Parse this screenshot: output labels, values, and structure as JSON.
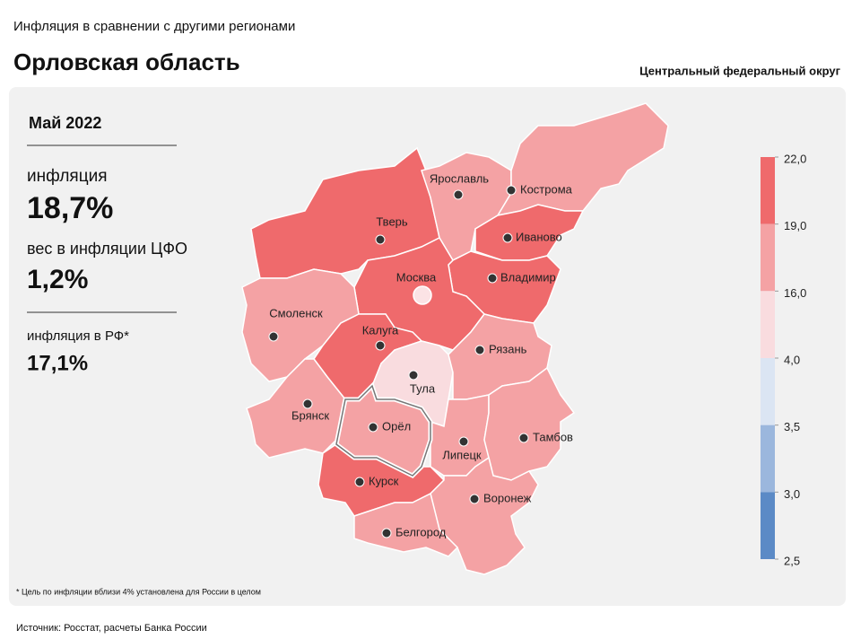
{
  "header": {
    "subtitle": "Инфляция в сравнении с другими регионами",
    "title": "Орловская область",
    "district": "Центральный федеральный округ"
  },
  "sidebar": {
    "period": "Май 2022",
    "inflation_label": "инфляция",
    "inflation": "18,7%",
    "weight_label": "вес в инфляции ЦФО",
    "weight": "1,2%",
    "rf_label": "инфляция в РФ*",
    "rf": "17,1%"
  },
  "map": {
    "regions": [
      {
        "name": "Тверь",
        "color": "#ef6a6c"
      },
      {
        "name": "Ярославль",
        "color": "#f4a2a4"
      },
      {
        "name": "Кострома",
        "color": "#f4a2a4"
      },
      {
        "name": "Иваново",
        "color": "#ef6a6c"
      },
      {
        "name": "Владимир",
        "color": "#ef6a6c"
      },
      {
        "name": "Москва",
        "color": "#ef6a6c"
      },
      {
        "name": "Смоленск",
        "color": "#f4a2a4"
      },
      {
        "name": "Калуга",
        "color": "#ef6a6c"
      },
      {
        "name": "Тула",
        "color": "#f9dcdf"
      },
      {
        "name": "Рязань",
        "color": "#f4a2a4"
      },
      {
        "name": "Брянск",
        "color": "#f4a2a4"
      },
      {
        "name": "Орёл",
        "color": "#f4a2a4",
        "selected": true
      },
      {
        "name": "Липецк",
        "color": "#f4a2a4"
      },
      {
        "name": "Тамбов",
        "color": "#f4a2a4"
      },
      {
        "name": "Курск",
        "color": "#ef6a6c"
      },
      {
        "name": "Воронеж",
        "color": "#f4a2a4"
      },
      {
        "name": "Белгород",
        "color": "#f4a2a4"
      }
    ],
    "legend": {
      "ticks": [
        {
          "value": 22,
          "label": "22,0"
        },
        {
          "value": 19,
          "label": "19,0"
        },
        {
          "value": 16,
          "label": "16,0"
        },
        {
          "value": 4,
          "label": "4,0"
        },
        {
          "value": 3.5,
          "label": "3,5"
        },
        {
          "value": 3,
          "label": "3,0"
        },
        {
          "value": 2.5,
          "label": "2,5"
        }
      ],
      "colors": [
        "#ef6a6c",
        "#f4a2a4",
        "#f9dcdf",
        "#dbe5f3",
        "#9bb7dd",
        "#5b8ac6"
      ]
    },
    "footnote": "* Цель по инфляции вблизи 4% установлена для России в целом"
  },
  "source": "Источник: Росстат, расчеты Банка России"
}
